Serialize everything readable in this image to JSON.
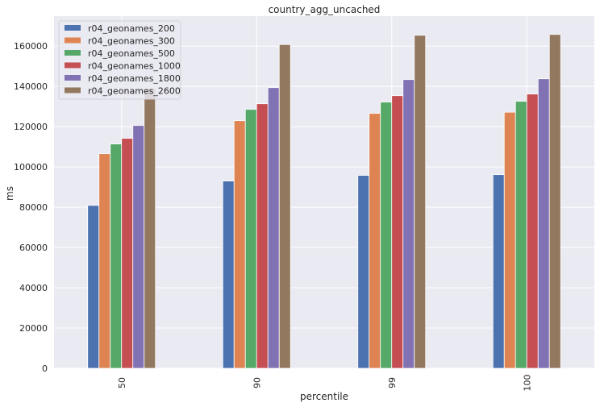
{
  "chart_data": {
    "type": "bar",
    "title": "country_agg_uncached",
    "xlabel": "percentile",
    "ylabel": "ms",
    "categories": [
      "50",
      "90",
      "99",
      "100"
    ],
    "ylim": [
      0,
      174900
    ],
    "yticks": [
      0,
      20000,
      40000,
      60000,
      80000,
      100000,
      120000,
      140000,
      160000
    ],
    "grid": true,
    "legend_position": "top-left",
    "series": [
      {
        "name": "r04_geonames_200",
        "color": "#4c72b0",
        "values": [
          80900,
          93000,
          95800,
          96200
        ]
      },
      {
        "name": "r04_geonames_300",
        "color": "#dd8452",
        "values": [
          106600,
          123000,
          126600,
          127200
        ]
      },
      {
        "name": "r04_geonames_500",
        "color": "#55a868",
        "values": [
          111400,
          128600,
          132200,
          132600
        ]
      },
      {
        "name": "r04_geonames_1000",
        "color": "#c44e52",
        "values": [
          114200,
          131400,
          135400,
          136200
        ]
      },
      {
        "name": "r04_geonames_1800",
        "color": "#8172b3",
        "values": [
          120600,
          139400,
          143400,
          143800
        ]
      },
      {
        "name": "r04_geonames_2600",
        "color": "#937860",
        "values": [
          139000,
          160800,
          165400,
          165800
        ]
      }
    ]
  }
}
